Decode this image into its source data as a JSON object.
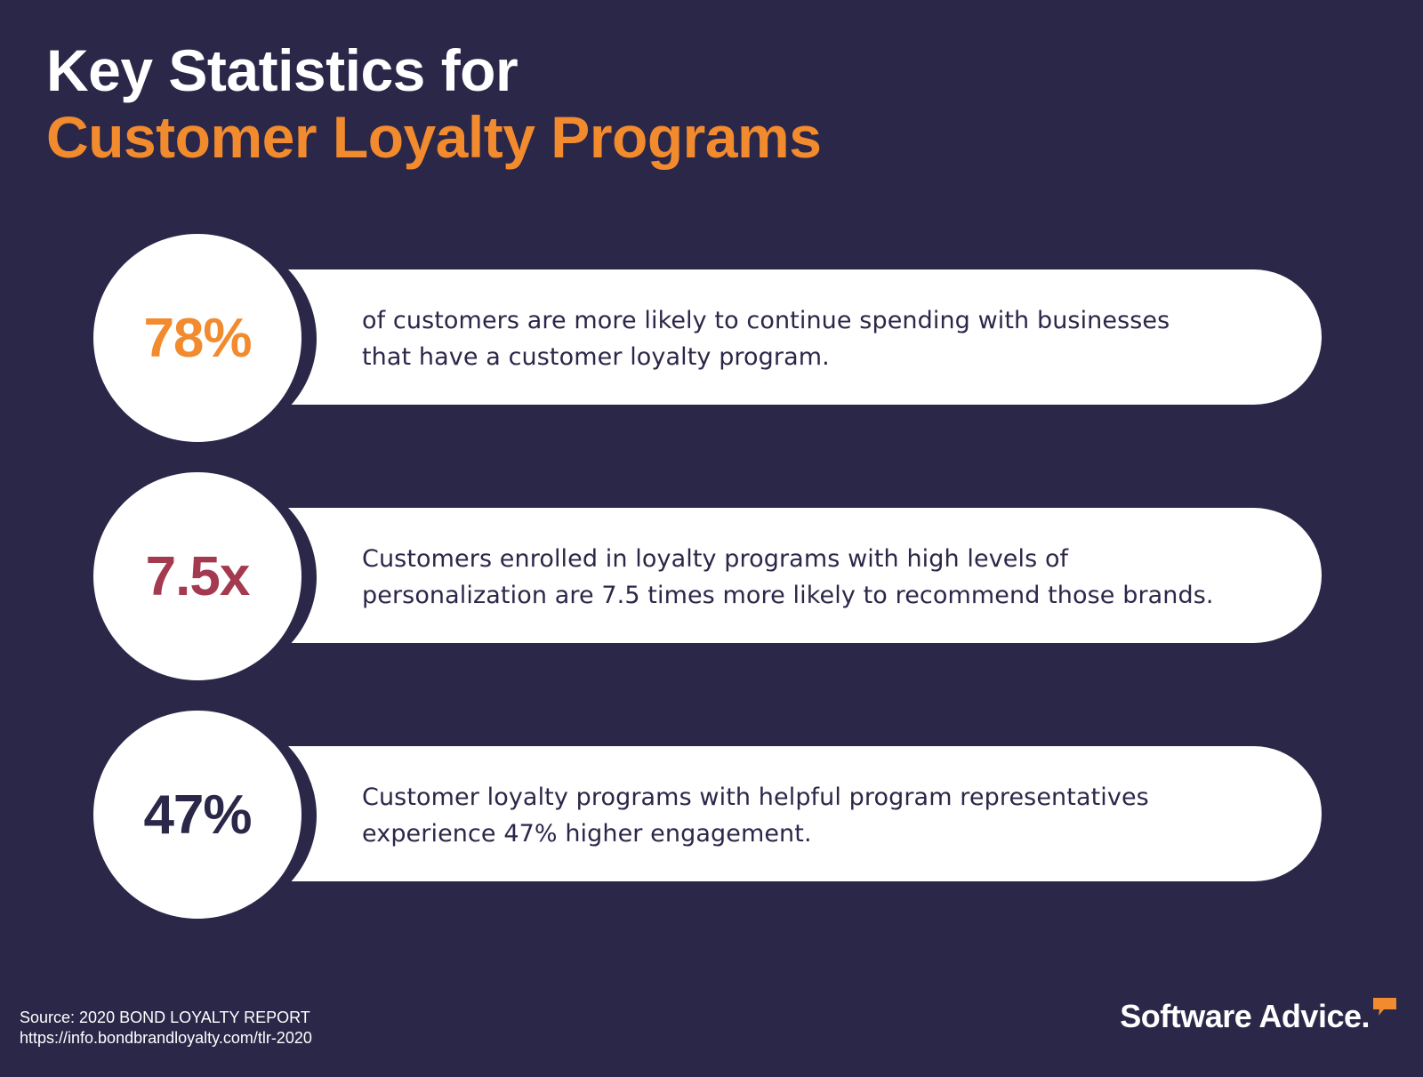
{
  "title": {
    "line1": "Key Statistics for",
    "line2": "Customer Loyalty Programs"
  },
  "colors": {
    "background": "#2b2749",
    "accent_orange": "#f28a2e",
    "accent_red": "#a43a4f",
    "navy": "#2b2749",
    "white": "#ffffff"
  },
  "stats": [
    {
      "value": "78%",
      "color": "#f28a2e",
      "text": "of customers are more likely to continue spending with businesses that have a customer loyalty program."
    },
    {
      "value": "7.5x",
      "color": "#a43a4f",
      "text": "Customers enrolled in loyalty programs with high levels of personalization are 7.5 times more likely to recommend those brands."
    },
    {
      "value": "47%",
      "color": "#2b2749",
      "text": "Customer loyalty programs with helpful program representatives experience 47% higher engagement."
    }
  ],
  "source": {
    "line1": "Source: 2020 BOND LOYALTY REPORT",
    "line2": "https://info.bondbrandloyalty.com/tlr-2020"
  },
  "logo": {
    "text": "Software Advice.",
    "icon": "speech-bubble-icon"
  }
}
